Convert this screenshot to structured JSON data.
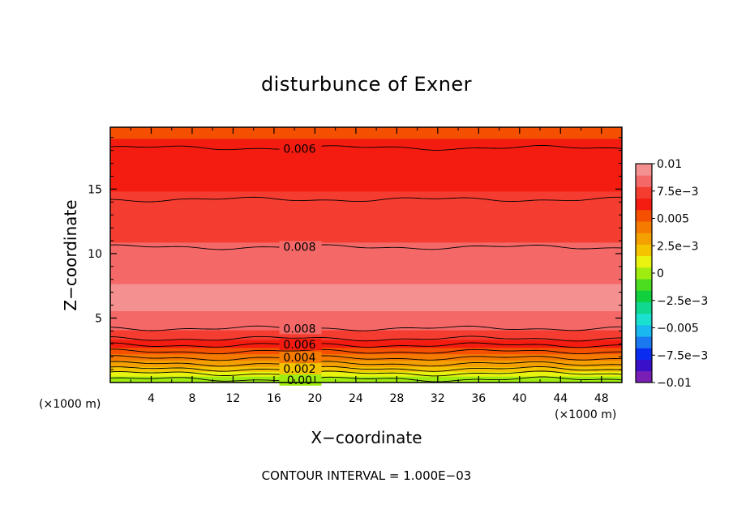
{
  "chart_data": {
    "type": "heatmap",
    "title": "disturbunce of Exner",
    "xlabel": "X−coordinate",
    "ylabel": "Z−coordinate",
    "x_unit": "(×1000 m)",
    "y_unit": "(×1000 m)",
    "xlim": [
      0,
      50
    ],
    "ylim": [
      0,
      19.8
    ],
    "x_ticks": [
      4,
      8,
      12,
      16,
      20,
      24,
      28,
      32,
      36,
      40,
      44,
      48
    ],
    "y_ticks": [
      5,
      10,
      15
    ],
    "grid": false,
    "contour_interval_text": "CONTOUR INTERVAL = 1.000E−03",
    "colorbar": {
      "range": [
        -0.01,
        0.01
      ],
      "tick_values": [
        0.01,
        0.0075,
        0.005,
        0.0025,
        0,
        -0.0025,
        -0.005,
        -0.0075,
        -0.01
      ],
      "tick_labels": [
        "0.01",
        "7.5e−3",
        "0.005",
        "2.5e−3",
        "0",
        "−2.5e−3",
        "−0.005",
        "−7.5e−3",
        "−0.01"
      ],
      "colors": [
        "#7a1fb5",
        "#3a10c8",
        "#0a2cf0",
        "#1a78f0",
        "#1ab8f0",
        "#1ae0d0",
        "#10d890",
        "#10d040",
        "#4cdc20",
        "#a0ec10",
        "#e8f410",
        "#f4c400",
        "#f4a000",
        "#f47a00",
        "#f45000",
        "#f41c10",
        "#f43c30",
        "#f46868",
        "#f49090"
      ]
    },
    "profile_description_points": [
      {
        "z": 0.3,
        "value": 0.0002
      },
      {
        "z": 0.7,
        "value": 0.001
      },
      {
        "z": 1.0,
        "value": 0.002
      },
      {
        "z": 1.4,
        "value": 0.003
      },
      {
        "z": 1.8,
        "value": 0.004
      },
      {
        "z": 2.3,
        "value": 0.005
      },
      {
        "z": 2.8,
        "value": 0.006
      },
      {
        "z": 3.4,
        "value": 0.007
      },
      {
        "z": 4.2,
        "value": 0.008
      },
      {
        "z": 5.2,
        "value": 0.0088
      },
      {
        "z": 6.5,
        "value": 0.0094
      },
      {
        "z": 8.0,
        "value": 0.0088
      },
      {
        "z": 10.5,
        "value": 0.008
      },
      {
        "z": 14.2,
        "value": 0.007
      },
      {
        "z": 18.2,
        "value": 0.006
      },
      {
        "z": 19.8,
        "value": 0.0055
      }
    ],
    "contours": [
      {
        "value": 0.006,
        "z": 18.2,
        "label": "0.006"
      },
      {
        "value": 0.007,
        "z": 14.2,
        "label": ""
      },
      {
        "value": 0.008,
        "z": 10.5,
        "label": "0.008"
      },
      {
        "value": 0.008,
        "z": 4.2,
        "label": "0.008"
      },
      {
        "value": 0.007,
        "z": 3.4,
        "label": ""
      },
      {
        "value": 0.006,
        "z": 2.9,
        "label": "0.006"
      },
      {
        "value": 0.005,
        "z": 2.4,
        "label": ""
      },
      {
        "value": 0.004,
        "z": 1.9,
        "label": "0.004"
      },
      {
        "value": 0.003,
        "z": 1.45,
        "label": ""
      },
      {
        "value": 0.002,
        "z": 1.05,
        "label": "0.002"
      },
      {
        "value": 0.001,
        "z": 0.7,
        "label": ""
      },
      {
        "value": 0.0,
        "z": 0.25,
        "label": "0.00"
      }
    ]
  }
}
